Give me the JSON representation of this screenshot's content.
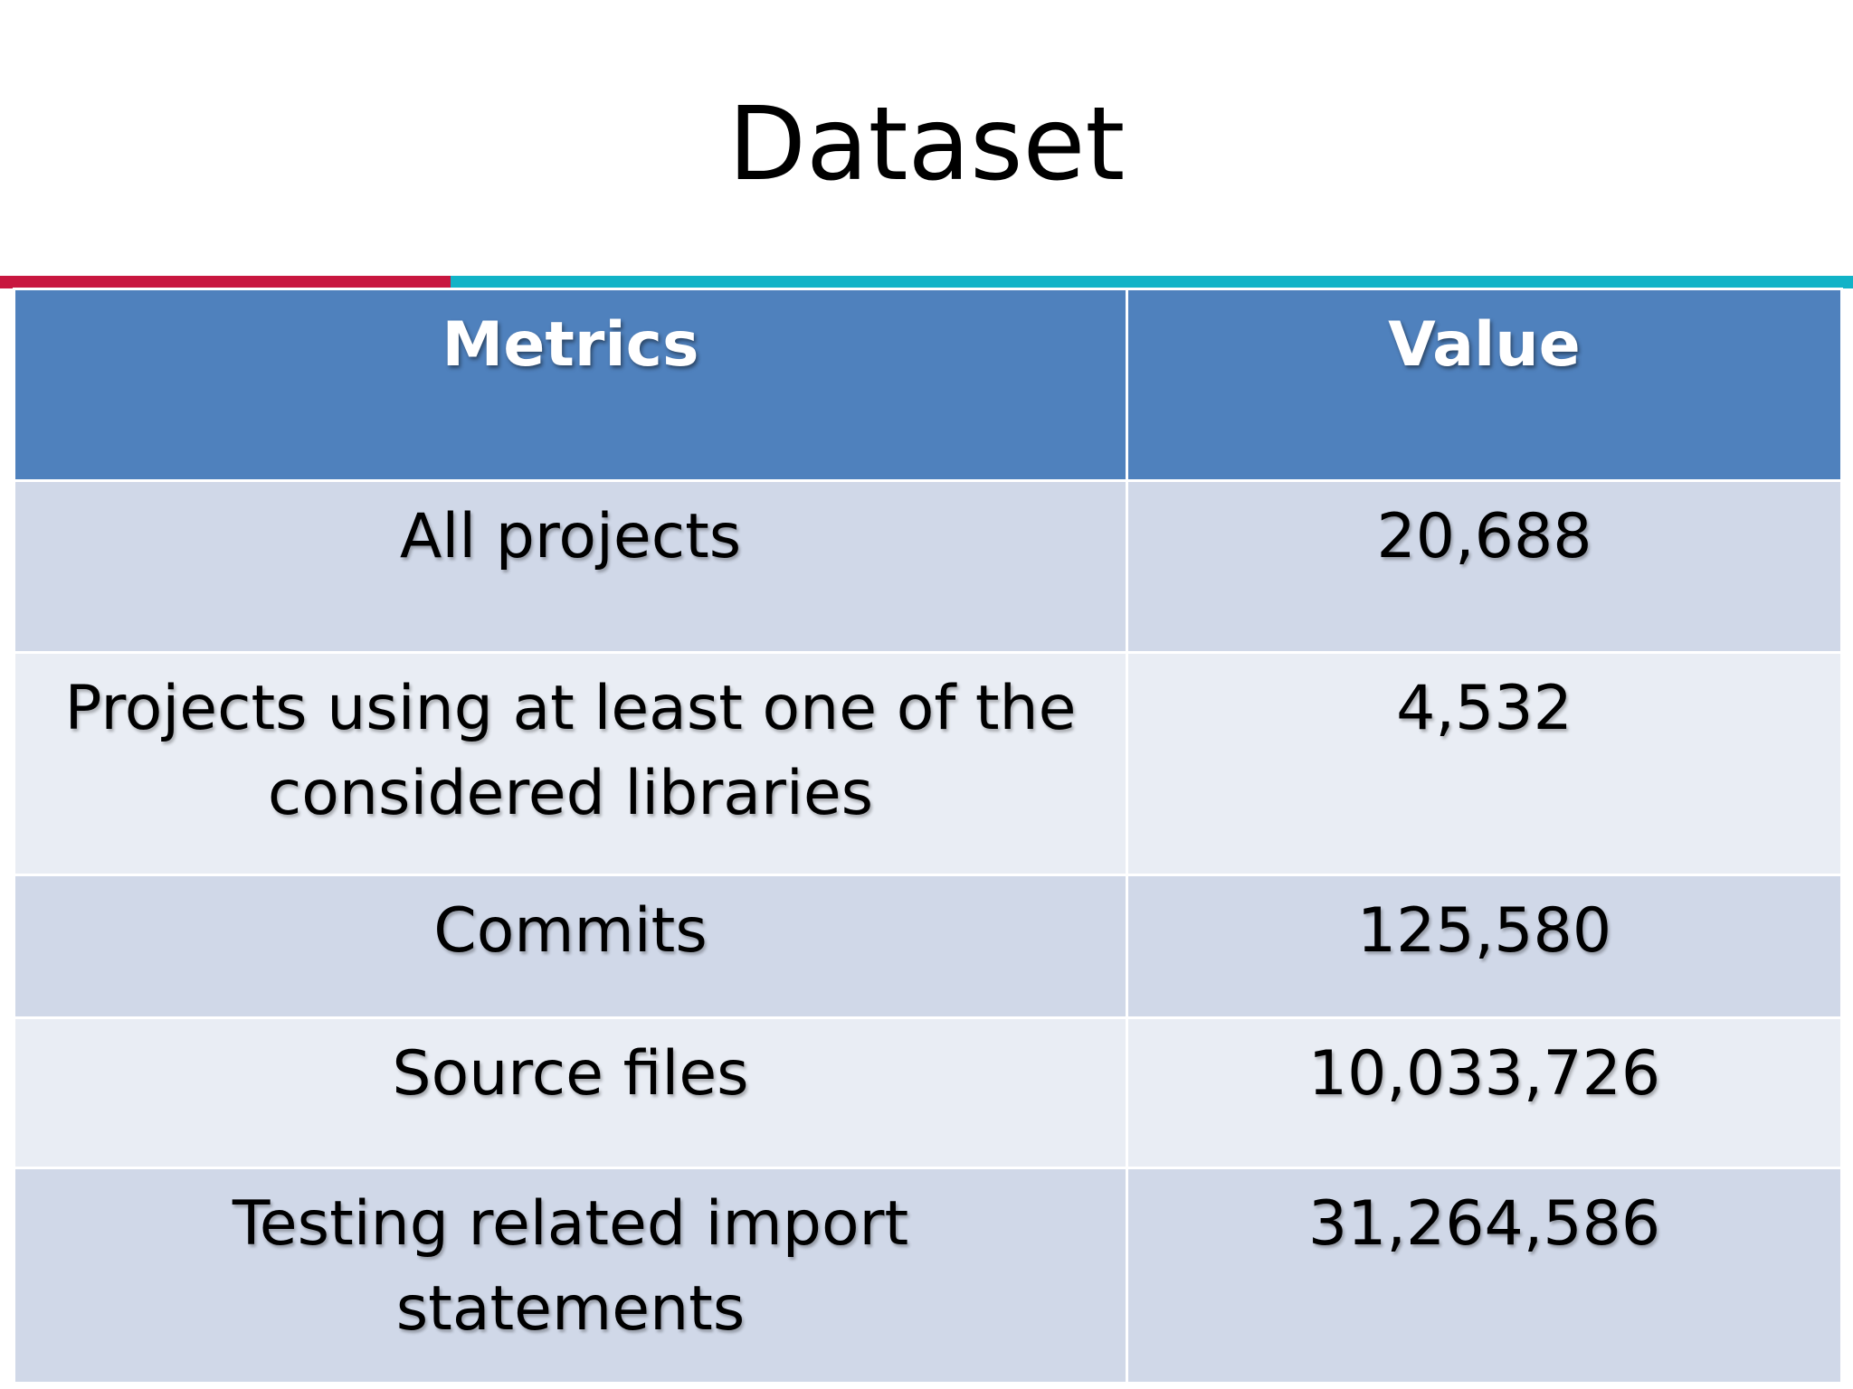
{
  "slide": {
    "title": "Dataset"
  },
  "colors": {
    "header_bg": "#4f81bd",
    "row_dark": "#d0d8e8",
    "row_light": "#e9edf4",
    "accent_red": "#c8173f",
    "accent_teal": "#12b3c7"
  },
  "table": {
    "headers": [
      "Metrics",
      "Value"
    ],
    "rows": [
      {
        "metric": "All projects",
        "value": "20,688"
      },
      {
        "metric": "Projects using at least one of the considered libraries",
        "value": "4,532"
      },
      {
        "metric": "Commits",
        "value": "125,580"
      },
      {
        "metric": "Source files",
        "value": "10,033,726"
      },
      {
        "metric": "Testing related import statements",
        "value": "31,264,586"
      }
    ]
  }
}
